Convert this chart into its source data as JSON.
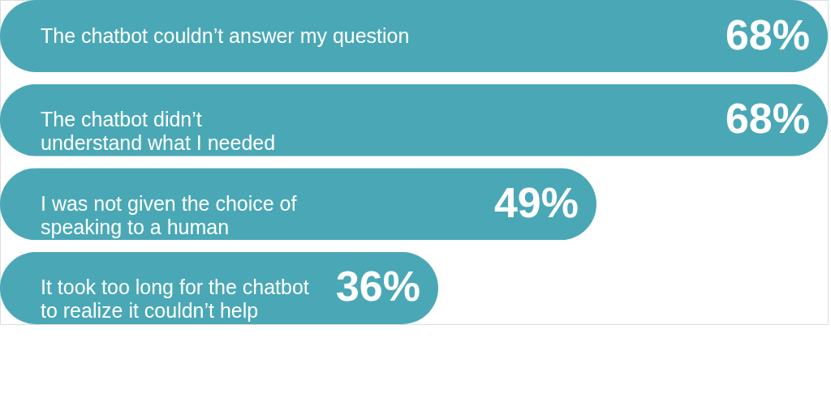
{
  "chart_data": {
    "type": "bar",
    "orientation": "horizontal",
    "categories": [
      "The chatbot couldn’t answer my question",
      "The chatbot didn’t\nunderstand what I needed",
      "I was not given the choice of\nspeaking to a human",
      "It took too long for the chatbot\nto realize it couldn’t help"
    ],
    "values": [
      68,
      68,
      49,
      36
    ],
    "value_labels": [
      "68%",
      "68%",
      "49%",
      "36%"
    ],
    "color": "#4aa8b6"
  }
}
